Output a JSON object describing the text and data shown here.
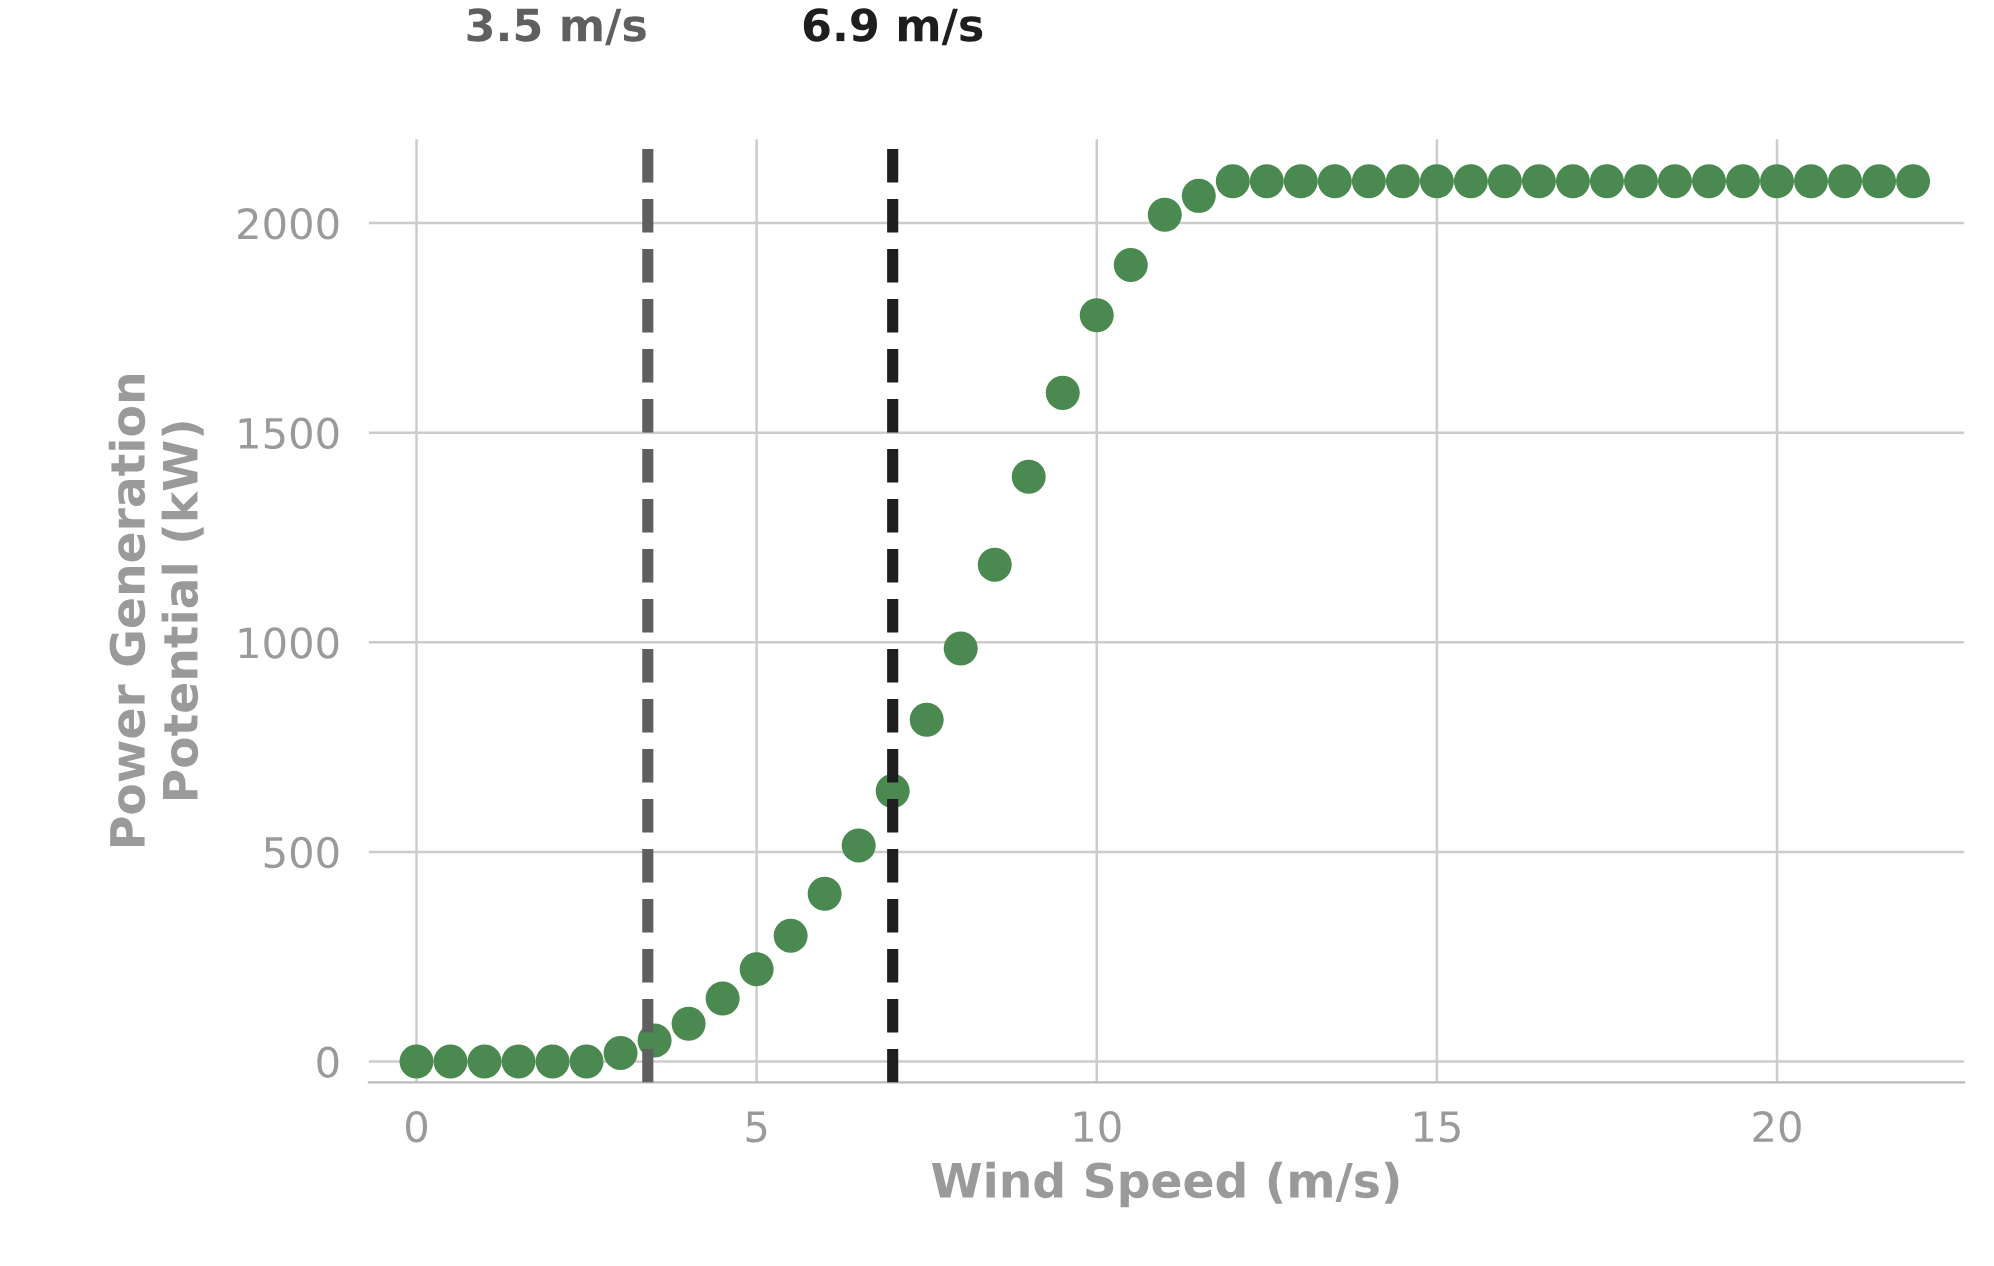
{
  "chart_data": {
    "type": "scatter",
    "xlabel": "Wind Speed (m/s)",
    "ylabel": "Power Generation\nPotential (kW)",
    "x": [
      0,
      0.5,
      1,
      1.5,
      2,
      2.5,
      3,
      3.5,
      4,
      4.5,
      5,
      5.5,
      6,
      6.5,
      7,
      7.5,
      8,
      8.5,
      9,
      9.5,
      10,
      10.5,
      11,
      11.5,
      12,
      12.5,
      13,
      13.5,
      14,
      14.5,
      15,
      15.5,
      16,
      16.5,
      17,
      17.5,
      18,
      18.5,
      19,
      19.5,
      20,
      20.5,
      21,
      21.5,
      22
    ],
    "series": [
      {
        "color": "#4a8a50",
        "values": [
          0,
          0,
          0,
          0,
          0,
          0,
          20,
          50,
          90,
          150,
          220,
          300,
          400,
          515,
          645,
          815,
          985,
          1185,
          1395,
          1595,
          1780,
          1900,
          2020,
          2065,
          2100,
          2100,
          2100,
          2100,
          2100,
          2100,
          2100,
          2100,
          2100,
          2100,
          2100,
          2100,
          2100,
          2100,
          2100,
          2100,
          2100,
          2100,
          2100,
          2100,
          2100
        ]
      }
    ],
    "marker": "circle",
    "xlim": [
      -0.7,
      22.75
    ],
    "ylim": [
      -50,
      2200
    ],
    "xticks": [
      0,
      5,
      10,
      15,
      20
    ],
    "yticks": [
      0,
      500,
      1000,
      1500,
      2000
    ],
    "grid": true,
    "ref_lines": [
      {
        "axis": "x",
        "value": 3.4,
        "label": "3.5 m/s",
        "color": "#5f5f5f",
        "line_style": "dashed"
      },
      {
        "axis": "x",
        "value": 7.0,
        "label": "6.9 m/s",
        "color": "#1e1e1e",
        "line_style": "dashed"
      }
    ]
  }
}
